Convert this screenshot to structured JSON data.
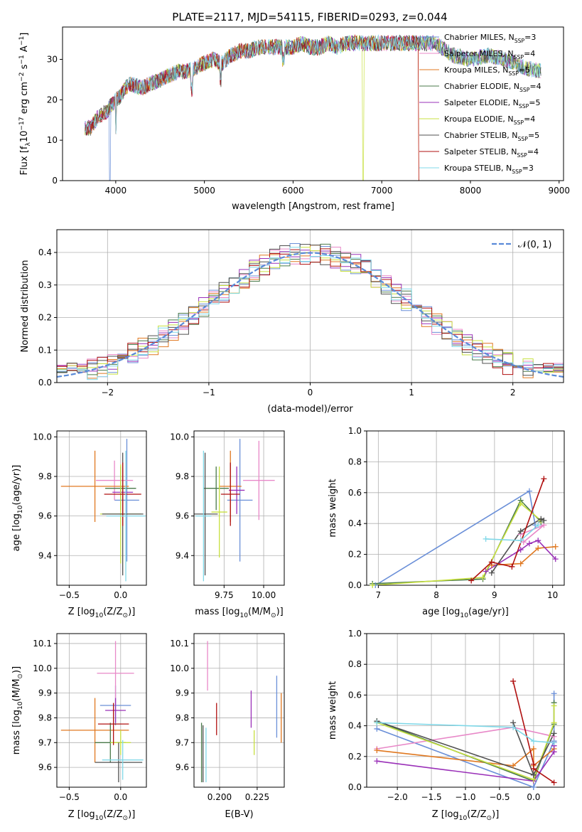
{
  "title": "PLATE=2117, MJD=54115, FIBERID=0293, z=0.044",
  "models": [
    {
      "name": "Chabrier MILES, N",
      "nssp": "3",
      "color": "#6a8fd8"
    },
    {
      "name": "Salpeter MILES, N",
      "nssp": "4",
      "color": "#e888c8"
    },
    {
      "name": "Kroupa MILES, N",
      "nssp": "5",
      "color": "#e07820"
    },
    {
      "name": "Chabrier ELODIE, N",
      "nssp": "4",
      "color": "#4a7a4a"
    },
    {
      "name": "Salpeter ELODIE, N",
      "nssp": "5",
      "color": "#9a30b8"
    },
    {
      "name": "Kroupa ELODIE, N",
      "nssp": "4",
      "color": "#c8e040"
    },
    {
      "name": "Chabrier STELIB, N",
      "nssp": "5",
      "color": "#505050"
    },
    {
      "name": "Salpeter STELIB, N",
      "nssp": "4",
      "color": "#b01010"
    },
    {
      "name": "Kroupa STELIB, N",
      "nssp": "3",
      "color": "#80d8e8"
    }
  ],
  "legend_sub": "SSP",
  "chart_data": [
    {
      "id": "spectrum",
      "type": "line",
      "xlabel": "wavelength [Angstrom, rest frame]",
      "ylabel_main": "Flux [f",
      "ylabel_sub": "λ",
      "ylabel_rest": "10",
      "ylabel_exp": "−17",
      "ylabel_unit": " erg cm",
      "ylabel_exp2": "−2",
      "ylabel_unit2": " s",
      "ylabel_exp3": "−1",
      "ylabel_unit3": " A",
      "ylabel_exp4": "−1",
      "ylabel_close": "]",
      "xlim": [
        3400,
        9050
      ],
      "ylim": [
        0,
        38
      ],
      "xticks": [
        4000,
        5000,
        6000,
        7000,
        8000,
        9000
      ],
      "yticks": [
        0,
        10,
        20,
        30
      ],
      "continuum": [
        [
          3650,
          13
        ],
        [
          3720,
          13
        ],
        [
          3800,
          16
        ],
        [
          3900,
          17
        ],
        [
          3960,
          19
        ],
        [
          4050,
          21
        ],
        [
          4150,
          24
        ],
        [
          4300,
          23
        ],
        [
          4400,
          24
        ],
        [
          4500,
          25
        ],
        [
          4600,
          26
        ],
        [
          4700,
          27
        ],
        [
          4800,
          27
        ],
        [
          4900,
          28
        ],
        [
          5000,
          29
        ],
        [
          5100,
          30
        ],
        [
          5200,
          29
        ],
        [
          5300,
          31
        ],
        [
          5400,
          32
        ],
        [
          5500,
          32
        ],
        [
          5600,
          33
        ],
        [
          5700,
          33
        ],
        [
          5800,
          33
        ],
        [
          5900,
          33
        ],
        [
          6000,
          33
        ],
        [
          6100,
          34
        ],
        [
          6200,
          33
        ],
        [
          6300,
          33
        ],
        [
          6400,
          34
        ],
        [
          6500,
          33
        ],
        [
          6600,
          34
        ],
        [
          6700,
          34
        ],
        [
          6800,
          34
        ],
        [
          6900,
          34
        ],
        [
          7000,
          34
        ],
        [
          7200,
          34
        ],
        [
          7400,
          34
        ],
        [
          7600,
          34
        ],
        [
          7800,
          31
        ],
        [
          8000,
          30
        ],
        [
          8200,
          31
        ],
        [
          8400,
          30
        ],
        [
          8600,
          28
        ],
        [
          8800,
          27
        ]
      ],
      "legend_position": "upper right"
    },
    {
      "id": "residuals",
      "type": "histogram",
      "xlabel": "(data-model)/error",
      "ylabel": "Normed distribution",
      "xlim": [
        -2.5,
        2.5
      ],
      "ylim": [
        0,
        0.47
      ],
      "xticks": [
        -2,
        -1,
        0,
        1,
        2
      ],
      "yticks": [
        0.0,
        0.1,
        0.2,
        0.3,
        0.4
      ],
      "bin_width": 0.1,
      "reference_label": "𝒩(0, 1)",
      "reference_color": "#5a8ad8",
      "legend_position": "upper right"
    },
    {
      "id": "age_vs_Z",
      "type": "errorbar",
      "xlabel": "Z [log",
      "xlabel_sub": "10",
      "xlabel_rest": "(Z/Z",
      "xlabel_sun": "⊙",
      "xlabel_close": ")]",
      "ylabel": "age  [log",
      "ylabel_sub": "10",
      "ylabel_rest": "(age/yr)]",
      "xlim": [
        -0.62,
        0.25
      ],
      "ylim": [
        9.25,
        10.03
      ],
      "xticks": [
        -0.5,
        0.0
      ],
      "yticks": [
        9.4,
        9.6,
        9.8,
        10.0
      ],
      "points": [
        {
          "x": 0.06,
          "xerr": 0.12,
          "y": 9.68,
          "yerr": 0.31
        },
        {
          "x": -0.06,
          "xerr": 0.18,
          "y": 9.78,
          "yerr": 0.1
        },
        {
          "x": -0.25,
          "xerr": 0.33,
          "y": 9.75,
          "yerr": 0.18
        },
        {
          "x": 0.0,
          "xerr": 0.15,
          "y": 9.74,
          "yerr": 0.11
        },
        {
          "x": 0.02,
          "xerr": 0.1,
          "y": 9.72,
          "yerr": 0.12
        },
        {
          "x": 0.0,
          "xerr": 0.2,
          "y": 9.61,
          "yerr": 0.25
        },
        {
          "x": 0.02,
          "xerr": 0.2,
          "y": 9.61,
          "yerr": 0.31
        },
        {
          "x": 0.02,
          "xerr": 0.18,
          "y": 9.71,
          "yerr": 0.16
        },
        {
          "x": 0.05,
          "xerr": 0.19,
          "y": 9.6,
          "yerr": 0.33
        }
      ]
    },
    {
      "id": "age_vs_mass",
      "type": "errorbar",
      "xlabel": "mass [log",
      "xlabel_sub": "10",
      "xlabel_rest": "(M/M",
      "xlabel_sun": "⊙",
      "xlabel_close": ")]",
      "xlim": [
        9.56,
        10.13
      ],
      "ylim": [
        9.25,
        10.03
      ],
      "xticks": [
        9.75,
        10.0
      ],
      "yticks": [
        9.4,
        9.6,
        9.8,
        10.0
      ],
      "points": [
        {
          "x": 9.85,
          "xerr": 0.08,
          "y": 9.68,
          "yerr": 0.31
        },
        {
          "x": 9.97,
          "xerr": 0.1,
          "y": 9.78,
          "yerr": 0.2
        },
        {
          "x": 9.79,
          "xerr": 0.07,
          "y": 9.75,
          "yerr": 0.18
        },
        {
          "x": 9.7,
          "xerr": 0.08,
          "y": 9.74,
          "yerr": 0.11
        },
        {
          "x": 9.83,
          "xerr": 0.05,
          "y": 9.73,
          "yerr": 0.12
        },
        {
          "x": 9.72,
          "xerr": 0.05,
          "y": 9.62,
          "yerr": 0.23
        },
        {
          "x": 9.63,
          "xerr": 0.08,
          "y": 9.61,
          "yerr": 0.31
        },
        {
          "x": 9.79,
          "xerr": 0.06,
          "y": 9.71,
          "yerr": 0.16
        },
        {
          "x": 9.62,
          "xerr": 0.05,
          "y": 9.6,
          "yerr": 0.33
        }
      ]
    },
    {
      "id": "weight_vs_age",
      "type": "line",
      "xlabel": "age  [log",
      "xlabel_sub": "10",
      "xlabel_rest": "(age/yr)]",
      "ylabel": "mass weight",
      "xlim": [
        6.8,
        10.2
      ],
      "ylim": [
        0,
        1
      ],
      "xticks": [
        7,
        8,
        9,
        10
      ],
      "yticks": [
        0.0,
        0.2,
        0.4,
        0.6,
        0.8,
        1.0
      ],
      "series": [
        {
          "x": [
            6.95,
            9.6,
            9.7
          ],
          "y": [
            0.0,
            0.61,
            0.39
          ]
        },
        {
          "x": [
            9.45,
            9.85,
            9.5
          ],
          "y": [
            0.33,
            0.39,
            0.28
          ]
        },
        {
          "x": [
            8.95,
            9.45,
            9.75,
            10.05
          ],
          "y": [
            0.13,
            0.14,
            0.24,
            0.25
          ]
        },
        {
          "x": [
            6.9,
            8.8,
            9.45,
            9.8
          ],
          "y": [
            0.01,
            0.04,
            0.55,
            0.41
          ]
        },
        {
          "x": [
            8.85,
            9.45,
            9.6,
            9.75,
            10.05
          ],
          "y": [
            0.09,
            0.23,
            0.27,
            0.29,
            0.17
          ]
        },
        {
          "x": [
            6.9,
            8.8,
            9.45,
            9.8
          ],
          "y": [
            0.0,
            0.05,
            0.53,
            0.42
          ]
        },
        {
          "x": [
            8.95,
            9.45,
            9.8,
            9.85
          ],
          "y": [
            0.08,
            0.35,
            0.43,
            0.42
          ]
        },
        {
          "x": [
            8.6,
            8.95,
            9.3,
            9.85
          ],
          "y": [
            0.03,
            0.15,
            0.12,
            0.69
          ]
        },
        {
          "x": [
            8.85,
            9.45,
            9.75
          ],
          "y": [
            0.3,
            0.29,
            0.39
          ]
        }
      ]
    },
    {
      "id": "mass_vs_Z",
      "type": "errorbar",
      "xlabel": "Z [log",
      "xlabel_sub": "10",
      "xlabel_rest": "(Z/Z",
      "xlabel_sun": "⊙",
      "xlabel_close": ")]",
      "ylabel": "mass [log",
      "ylabel_sub": "10",
      "ylabel_rest": "(M/M",
      "ylabel_sun": "⊙",
      "ylabel_close": ")]",
      "xlim": [
        -0.62,
        0.25
      ],
      "ylim": [
        9.52,
        10.14
      ],
      "xticks": [
        -0.5,
        0.0
      ],
      "yticks": [
        9.6,
        9.7,
        9.8,
        9.9,
        10.0,
        10.1
      ],
      "points": [
        {
          "x": -0.05,
          "xerr": 0.15,
          "y": 9.85,
          "yerr": 0.08
        },
        {
          "x": -0.05,
          "xerr": 0.18,
          "y": 9.98,
          "yerr": 0.13
        },
        {
          "x": -0.25,
          "xerr": 0.33,
          "y": 9.75,
          "yerr": 0.13
        },
        {
          "x": -0.1,
          "xerr": 0.15,
          "y": 9.7,
          "yerr": 0.08
        },
        {
          "x": -0.05,
          "xerr": 0.1,
          "y": 9.83,
          "yerr": 0.05
        },
        {
          "x": 0.0,
          "xerr": 0.1,
          "y": 9.7,
          "yerr": 0.05
        },
        {
          "x": -0.02,
          "xerr": 0.23,
          "y": 9.62,
          "yerr": 0.08
        },
        {
          "x": -0.07,
          "xerr": 0.15,
          "y": 9.775,
          "yerr": 0.085
        },
        {
          "x": 0.02,
          "xerr": 0.2,
          "y": 9.63,
          "yerr": 0.08
        }
      ]
    },
    {
      "id": "mass_vs_EBV",
      "type": "errorbar",
      "xlabel": "E(B-V)",
      "xlim": [
        0.183,
        0.243
      ],
      "ylim": [
        9.52,
        10.14
      ],
      "xticks": [
        0.2,
        0.225
      ],
      "xticklabels": [
        "0.200",
        "0.225"
      ],
      "yticks": [
        9.6,
        9.7,
        9.8,
        9.9,
        10.0,
        10.1
      ],
      "points": [
        {
          "x": 0.238,
          "y": 9.845,
          "yerr": 0.125
        },
        {
          "x": 0.192,
          "y": 10.01,
          "yerr": 0.1
        },
        {
          "x": 0.241,
          "y": 9.8,
          "yerr": 0.1
        },
        {
          "x": 0.188,
          "y": 9.66,
          "yerr": 0.12
        },
        {
          "x": 0.221,
          "y": 9.835,
          "yerr": 0.075
        },
        {
          "x": 0.223,
          "y": 9.7,
          "yerr": 0.05
        },
        {
          "x": 0.189,
          "y": 9.655,
          "yerr": 0.115
        },
        {
          "x": 0.198,
          "y": 9.795,
          "yerr": 0.065
        },
        {
          "x": 0.191,
          "y": 9.65,
          "yerr": 0.11
        }
      ]
    },
    {
      "id": "weight_vs_Z",
      "type": "line",
      "xlabel": "Z [log",
      "xlabel_sub": "10",
      "xlabel_rest": "(Z/Z",
      "xlabel_sun": "⊙",
      "xlabel_close": ")]",
      "ylabel": "mass weight",
      "xlim": [
        -2.45,
        0.45
      ],
      "ylim": [
        0,
        1
      ],
      "xticks": [
        -2.0,
        -1.5,
        -1.0,
        -0.5,
        0.0
      ],
      "yticks": [
        0.0,
        0.2,
        0.4,
        0.6,
        0.8,
        1.0
      ],
      "series": [
        {
          "x": [
            -2.3,
            0.0,
            0.3,
            0.3
          ],
          "y": [
            0.38,
            0.0,
            0.3,
            0.61
          ]
        },
        {
          "x": [
            -2.3,
            -0.3,
            0.3,
            0.3
          ],
          "y": [
            0.25,
            0.39,
            0.33,
            0.29
          ]
        },
        {
          "x": [
            -2.3,
            -0.3,
            0.0,
            0.0,
            0.3
          ],
          "y": [
            0.24,
            0.14,
            0.25,
            0.14,
            0.25
          ]
        },
        {
          "x": [
            -2.3,
            0.0,
            0.3,
            0.3
          ],
          "y": [
            0.43,
            0.04,
            0.41,
            0.55
          ]
        },
        {
          "x": [
            -2.3,
            0.0,
            0.3,
            0.3,
            0.3
          ],
          "y": [
            0.17,
            0.04,
            0.23,
            0.27,
            0.29
          ]
        },
        {
          "x": [
            -2.3,
            0.0,
            0.3,
            0.3
          ],
          "y": [
            0.42,
            0.05,
            0.42,
            0.53
          ]
        },
        {
          "x": [
            -2.3,
            0.0,
            -0.3,
            0.0,
            0.3
          ],
          "y": [
            0.43,
            0.08,
            0.42,
            0.08,
            0.35
          ]
        },
        {
          "x": [
            -0.3,
            0.0,
            0.0,
            0.3
          ],
          "y": [
            0.69,
            0.15,
            0.12,
            0.03
          ]
        },
        {
          "x": [
            -2.3,
            -0.3,
            0.0,
            0.3
          ],
          "y": [
            0.42,
            0.39,
            0.3,
            0.29
          ]
        }
      ]
    }
  ]
}
